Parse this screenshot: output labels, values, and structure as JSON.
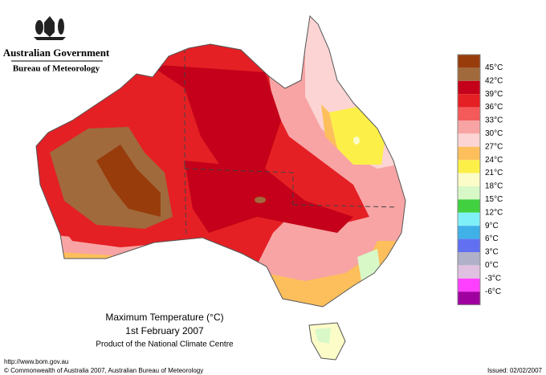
{
  "header": {
    "agency": "Australian Government",
    "bureau": "Bureau of Meteorology"
  },
  "legend": [
    {
      "label": "45°C",
      "color": "#983c0c"
    },
    {
      "label": "42°C",
      "color": "#a06a3c"
    },
    {
      "label": "39°C",
      "color": "#c4001a"
    },
    {
      "label": "36°C",
      "color": "#e42024"
    },
    {
      "label": "33°C",
      "color": "#f45a5a"
    },
    {
      "label": "30°C",
      "color": "#f8a4a4"
    },
    {
      "label": "27°C",
      "color": "#fcd4d4"
    },
    {
      "label": "24°C",
      "color": "#fcbf5c"
    },
    {
      "label": "21°C",
      "color": "#fcf048"
    },
    {
      "label": "18°C",
      "color": "#fcfcc8"
    },
    {
      "label": "15°C",
      "color": "#d8f8c8"
    },
    {
      "label": "12°C",
      "color": "#40d040"
    },
    {
      "label": "9°C",
      "color": "#80f0f8"
    },
    {
      "label": "6°C",
      "color": "#40b0e8"
    },
    {
      "label": "3°C",
      "color": "#6070f0"
    },
    {
      "label": "0°C",
      "color": "#b0b0c8"
    },
    {
      "label": "-3°C",
      "color": "#e0c0e0"
    },
    {
      "label": "-6°C",
      "color": "#ff40ff"
    }
  ],
  "legend_bottom_color": "#a000a0",
  "title": {
    "line1": "Maximum Temperature (°C)",
    "line2": "1st February 2007",
    "line3": "Product of the National Climate Centre"
  },
  "footer": {
    "url": "http://www.bom.gov.au",
    "copyright": "© Commonwealth of Australia 2007, Australian Bureau of Meteorology",
    "issued": "Issued: 02/02/2007"
  }
}
